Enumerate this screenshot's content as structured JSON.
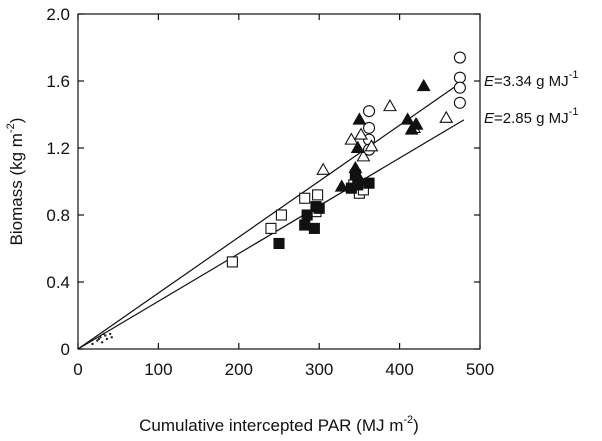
{
  "chart_data": {
    "type": "scatter",
    "xlabel": "Cumulative intercepted PAR (MJ m",
    "xlabel_sup": "-2",
    "xlabel_tail": ")",
    "ylabel": "Biomass (kg m",
    "ylabel_sup": "-2",
    "ylabel_tail": ")",
    "xlim": [
      0,
      500
    ],
    "ylim": [
      0,
      2.0
    ],
    "xticks": [
      "0",
      "100",
      "200",
      "300",
      "400",
      "500"
    ],
    "yticks": [
      "0",
      "0.4",
      "0.8",
      "1.2",
      "1.6",
      "2.0"
    ],
    "grid": false,
    "lines": [
      {
        "label_prefix": "E",
        "label_text": "=3.34 g MJ",
        "label_sup": "-1",
        "slope": 0.00334
      },
      {
        "label_prefix": "E",
        "label_text": "=2.85 g MJ",
        "label_sup": "-1",
        "slope": 0.00285
      }
    ],
    "series": [
      {
        "marker": "open-circle",
        "points": [
          [
            475,
            1.74
          ],
          [
            475,
            1.62
          ],
          [
            475,
            1.56
          ],
          [
            475,
            1.47
          ],
          [
            362,
            1.42
          ],
          [
            362,
            1.32
          ],
          [
            362,
            1.25
          ],
          [
            362,
            1.19
          ]
        ]
      },
      {
        "marker": "open-triangle",
        "points": [
          [
            305,
            1.07
          ],
          [
            340,
            1.25
          ],
          [
            352,
            1.28
          ],
          [
            355,
            1.15
          ],
          [
            365,
            1.21
          ],
          [
            388,
            1.45
          ],
          [
            418,
            1.32
          ],
          [
            421,
            1.34
          ],
          [
            458,
            1.38
          ],
          [
            348,
            1.2
          ]
        ]
      },
      {
        "marker": "filled-triangle",
        "points": [
          [
            328,
            0.97
          ],
          [
            345,
            1.08
          ],
          [
            348,
            1.2
          ],
          [
            350,
            1.37
          ],
          [
            410,
            1.37
          ],
          [
            415,
            1.31
          ],
          [
            420,
            1.34
          ],
          [
            430,
            1.57
          ],
          [
            352,
            1.0
          ]
        ]
      },
      {
        "marker": "open-square",
        "points": [
          [
            192,
            0.52
          ],
          [
            240,
            0.72
          ],
          [
            253,
            0.8
          ],
          [
            282,
            0.9
          ],
          [
            296,
            0.82
          ],
          [
            298,
            0.92
          ],
          [
            343,
            0.98
          ],
          [
            350,
            0.93
          ],
          [
            355,
            0.95
          ]
        ]
      },
      {
        "marker": "filled-square",
        "points": [
          [
            250,
            0.63
          ],
          [
            282,
            0.74
          ],
          [
            285,
            0.8
          ],
          [
            294,
            0.72
          ],
          [
            296,
            0.85
          ],
          [
            300,
            0.84
          ],
          [
            340,
            0.96
          ],
          [
            345,
            1.04
          ],
          [
            348,
            0.98
          ],
          [
            362,
            0.99
          ]
        ]
      },
      {
        "marker": "small-dot",
        "points": [
          [
            18,
            0.03
          ],
          [
            24,
            0.05
          ],
          [
            28,
            0.07
          ],
          [
            30,
            0.04
          ],
          [
            34,
            0.08
          ],
          [
            36,
            0.06
          ],
          [
            40,
            0.09
          ],
          [
            42,
            0.07
          ],
          [
            26,
            0.06
          ],
          [
            32,
            0.09
          ]
        ]
      }
    ]
  }
}
